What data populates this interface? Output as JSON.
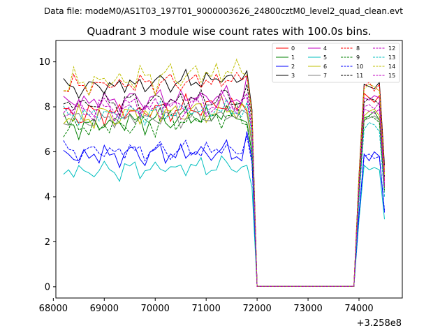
{
  "figure": {
    "suptitle": "Data file: modeM0/AS1T03_197T01_9000003626_24800cztM0_level2_quad_clean.evt"
  },
  "chart_data": {
    "type": "line",
    "title": "Quadrant 3 module wise count rates with 100.0s bins.",
    "xlabel": "",
    "ylabel": "",
    "x_offset_label": "+3.258e8",
    "xlim": [
      68050,
      74850
    ],
    "ylim": [
      -0.5,
      10.95
    ],
    "x_ticks": [
      68000,
      69000,
      70000,
      71000,
      72000,
      73000,
      74000
    ],
    "y_ticks": [
      0,
      2,
      4,
      6,
      8,
      10
    ],
    "grid": false,
    "legend": {
      "placement": "top-right",
      "columns": 4
    },
    "series": [
      {
        "name": "0",
        "color": "#ff0000",
        "dash": "solid",
        "seg1": 7.6,
        "seg2": 8.1,
        "amp": 0.28,
        "ph": 0.3,
        "end": 7.8,
        "peak": [
          8.6,
          8.4,
          8.2,
          8.5
        ],
        "last": 4.7
      },
      {
        "name": "1",
        "color": "#008000",
        "dash": "solid",
        "seg1": 7.1,
        "seg2": 7.7,
        "amp": 0.3,
        "ph": 1.1,
        "end": 7.3,
        "peak": [
          7.5,
          7.6,
          7.8,
          7.4
        ],
        "last": 4.5
      },
      {
        "name": "2",
        "color": "#0000ff",
        "dash": "solid",
        "seg1": 5.8,
        "seg2": 6.0,
        "amp": 0.3,
        "ph": 2.0,
        "end": 6.9,
        "peak": [
          5.9,
          5.6,
          6.0,
          5.8
        ],
        "last": 3.3
      },
      {
        "name": "3",
        "color": "#000000",
        "dash": "solid",
        "seg1": 8.8,
        "seg2": 9.3,
        "amp": 0.25,
        "ph": 0.7,
        "end": 9.6,
        "peak": [
          9.0,
          8.9,
          8.8,
          9.1
        ],
        "last": 5.4
      },
      {
        "name": "4",
        "color": "#c000c0",
        "dash": "solid",
        "seg1": 8.2,
        "seg2": 8.5,
        "amp": 0.25,
        "ph": 1.9,
        "end": 9.4,
        "peak": [
          8.4,
          8.3,
          8.5,
          8.4
        ],
        "last": 5.1
      },
      {
        "name": "5",
        "color": "#00bfbf",
        "dash": "solid",
        "seg1": 5.1,
        "seg2": 5.4,
        "amp": 0.25,
        "ph": 2.7,
        "end": 5.4,
        "peak": [
          5.4,
          5.2,
          5.3,
          5.2
        ],
        "last": 3.0
      },
      {
        "name": "6",
        "color": "#bfbf00",
        "dash": "solid",
        "seg1": 7.5,
        "seg2": 7.9,
        "amp": 0.3,
        "ph": 3.3,
        "end": 7.9,
        "peak": [
          7.6,
          7.8,
          7.9,
          7.6
        ],
        "last": 4.4
      },
      {
        "name": "7",
        "color": "#808080",
        "dash": "solid",
        "seg1": 7.4,
        "seg2": 7.6,
        "amp": 0.22,
        "ph": 4.1,
        "end": 7.7,
        "peak": [
          7.4,
          7.5,
          7.6,
          7.4
        ],
        "last": 4.2
      },
      {
        "name": "8",
        "color": "#ff0000",
        "dash": "dashed",
        "seg1": 8.9,
        "seg2": 9.2,
        "amp": 0.25,
        "ph": 4.9,
        "end": 9.4,
        "peak": [
          8.9,
          9.1,
          8.7,
          9.0
        ],
        "last": 5.2
      },
      {
        "name": "9",
        "color": "#008000",
        "dash": "dashed",
        "seg1": 7.0,
        "seg2": 7.6,
        "amp": 0.3,
        "ph": 5.5,
        "end": 7.2,
        "peak": [
          7.4,
          7.6,
          7.5,
          7.3
        ],
        "last": 4.3
      },
      {
        "name": "10",
        "color": "#0000ff",
        "dash": "dashed",
        "seg1": 6.0,
        "seg2": 6.1,
        "amp": 0.25,
        "ph": 0.9,
        "end": 6.7,
        "peak": [
          5.8,
          5.9,
          5.7,
          5.8
        ],
        "last": 3.4
      },
      {
        "name": "11",
        "color": "#000000",
        "dash": "dashed",
        "seg1": 8.1,
        "seg2": 8.4,
        "amp": 0.28,
        "ph": 2.4,
        "end": 9.0,
        "peak": [
          8.2,
          8.4,
          8.3,
          8.1
        ],
        "last": 4.9
      },
      {
        "name": "12",
        "color": "#c000c0",
        "dash": "dashed",
        "seg1": 7.8,
        "seg2": 8.0,
        "amp": 0.28,
        "ph": 3.7,
        "end": 8.4,
        "peak": [
          7.9,
          7.8,
          7.7,
          7.9
        ],
        "last": 4.6
      },
      {
        "name": "13",
        "color": "#00bfbf",
        "dash": "dashed",
        "seg1": 7.6,
        "seg2": 7.9,
        "amp": 0.25,
        "ph": 1.5,
        "end": 8.2,
        "peak": [
          7.0,
          7.3,
          7.2,
          6.9
        ],
        "last": 4.0
      },
      {
        "name": "14",
        "color": "#bfbf00",
        "dash": "dashed",
        "seg1": 9.0,
        "seg2": 9.6,
        "amp": 0.35,
        "ph": 5.0,
        "end": 9.4,
        "peak": [
          8.8,
          9.0,
          8.9,
          8.7
        ],
        "last": 5.0
      },
      {
        "name": "15",
        "color": "#c000c0",
        "dash": "dashed",
        "seg1": 7.9,
        "seg2": 8.2,
        "amp": 0.28,
        "ph": 2.9,
        "end": 8.6,
        "peak": [
          8.0,
          8.1,
          7.9,
          8.2
        ],
        "last": 4.4
      }
    ]
  }
}
